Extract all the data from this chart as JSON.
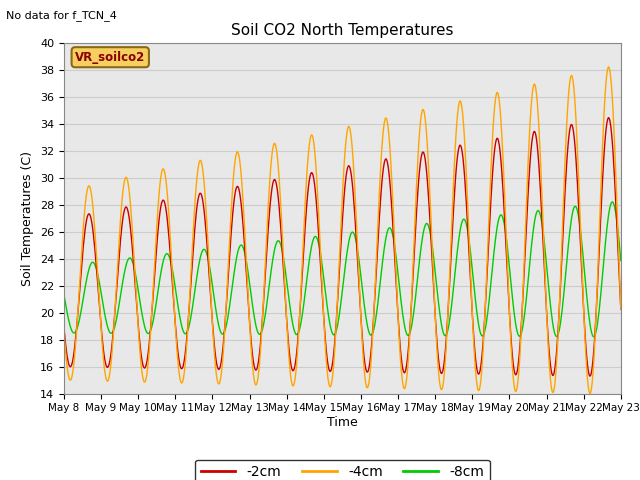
{
  "title": "Soil CO2 North Temperatures",
  "no_data_text": "No data for f_TCN_4",
  "vr_label": "VR_soilco2",
  "ylabel": "Soil Temperatures (C)",
  "xlabel": "Time",
  "ylim": [
    14,
    40
  ],
  "grid_color": "#cccccc",
  "bg_color": "#e8e8e8",
  "line_colors": {
    "-2cm": "#cc0000",
    "-4cm": "#ffa500",
    "-8cm": "#00cc00"
  },
  "x_tick_labels": [
    "May 8",
    "May 9",
    "May 10",
    "May 11",
    "May 12",
    "May 13",
    "May 14",
    "May 15",
    "May 16",
    "May 17",
    "May 18",
    "May 19",
    "May 20",
    "May 21",
    "May 22",
    "May 23"
  ],
  "n_days": 16,
  "yticks": [
    14,
    16,
    18,
    20,
    22,
    24,
    26,
    28,
    30,
    32,
    34,
    36,
    38,
    40
  ]
}
